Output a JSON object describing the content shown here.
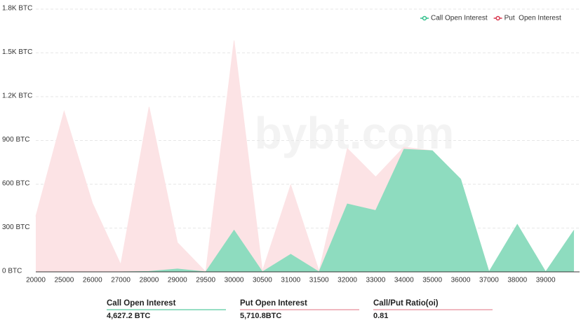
{
  "chart_data": {
    "type": "area",
    "watermark": "bybt.com",
    "categories": [
      "20000",
      "25000",
      "26000",
      "27000",
      "28000",
      "29000",
      "29500",
      "30000",
      "30500",
      "31000",
      "31500",
      "32000",
      "33000",
      "34000",
      "35000",
      "36000",
      "37000",
      "38000",
      "39000",
      null
    ],
    "series": [
      {
        "name": "Put  Open Interest",
        "color": "#d9374e",
        "fill": "#fce3e5",
        "values": [
          380,
          1100,
          470,
          50,
          1130,
          200,
          0,
          1585,
          5,
          595,
          5,
          845,
          650,
          855,
          830,
          630,
          0,
          300,
          0,
          280
        ]
      },
      {
        "name": "Call Open Interest",
        "color": "#2fbf8a",
        "fill": "#8edcbf",
        "values": [
          0,
          0,
          0,
          0,
          3,
          20,
          0,
          285,
          0,
          120,
          0,
          465,
          420,
          840,
          830,
          635,
          0,
          325,
          0,
          285
        ]
      }
    ],
    "ylim": [
      0,
      1800
    ],
    "yticks": [
      {
        "value": 0,
        "label": "0 BTC"
      },
      {
        "value": 300,
        "label": "300 BTC"
      },
      {
        "value": 600,
        "label": "600 BTC"
      },
      {
        "value": 900,
        "label": "900 BTC"
      },
      {
        "value": 1200,
        "label": "1.2K BTC"
      },
      {
        "value": 1500,
        "label": "1.5K BTC"
      },
      {
        "value": 1800,
        "label": "1.8K BTC"
      }
    ],
    "grid": true,
    "legend_order": [
      1,
      0
    ],
    "legend": "top-right",
    "summary": [
      {
        "label": "Call Open Interest",
        "value": "4,627.2 BTC",
        "color": "#2fbf8a"
      },
      {
        "label": "Put Open Interest",
        "value": "5,710.8BTC",
        "color": "#e07080"
      },
      {
        "label": "Call/Put Ratio(oi)",
        "value": "0.81",
        "color": "#e07080"
      }
    ]
  }
}
